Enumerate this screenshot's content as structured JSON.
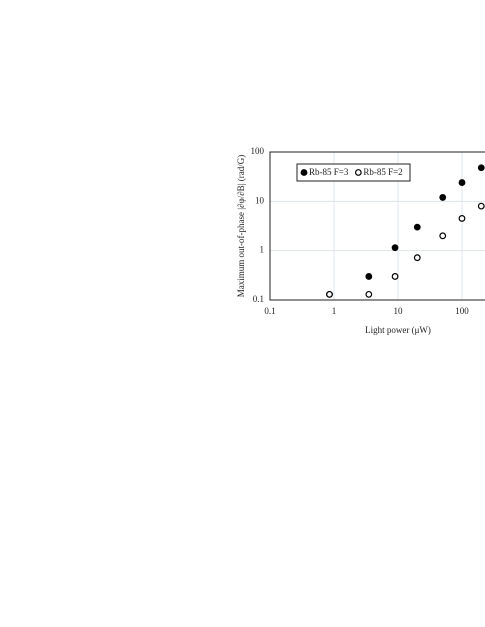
{
  "chart_data": {
    "type": "scatter",
    "x_label": "Light power (μW)",
    "y_label": "Maximum out-of-phase |∂φ/∂B| (rad/G)",
    "xlog": true,
    "ylog": true,
    "grid": true,
    "legend": "top-left",
    "xlim": [
      0.1,
      1000
    ],
    "ylim": [
      0.1,
      100
    ],
    "xticks": [
      0.1,
      1,
      10,
      100
    ],
    "yticks": [
      0.1,
      1,
      10,
      100
    ],
    "series": [
      {
        "name": "Rb-85 F=3",
        "color": "#000000",
        "filled": true,
        "x": [
          0.85,
          3.5,
          9,
          20,
          50,
          100,
          200
        ],
        "values": [
          0.13,
          0.3,
          1.15,
          3,
          12,
          24,
          48
        ]
      },
      {
        "name": "Rb-85 F=2",
        "color": "#000000",
        "filled": false,
        "x": [
          0.85,
          3.5,
          9,
          20,
          50,
          100,
          200
        ],
        "values": [
          0.13,
          0.13,
          0.3,
          0.72,
          2,
          4.5,
          8
        ]
      }
    ]
  }
}
